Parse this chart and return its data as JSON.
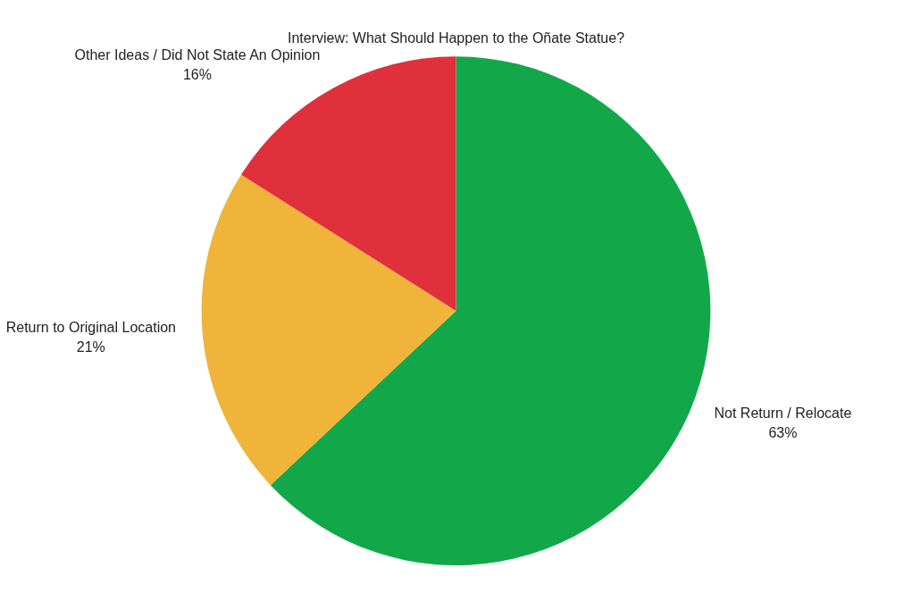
{
  "chart_data": {
    "type": "pie",
    "title": "Interview: What Should Happen to the Oñate Statue?",
    "categories": [
      "Not Return / Relocate",
      "Return to Original Location",
      "Other Ideas / Did Not State An Opinion"
    ],
    "values": [
      63,
      21,
      16
    ],
    "colors": [
      "#12a84a",
      "#f0b43a",
      "#e0303c"
    ],
    "value_labels": [
      "63%",
      "21%",
      "16%"
    ]
  }
}
